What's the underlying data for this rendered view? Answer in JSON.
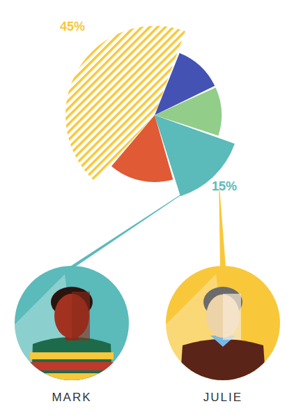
{
  "chart_data": {
    "type": "pie",
    "categories": [
      null,
      null,
      "MARK",
      null,
      "JULIE"
    ],
    "values": [
      12,
      12,
      15,
      16,
      45
    ],
    "value_labels": [
      null,
      null,
      "15%",
      null,
      "45%"
    ],
    "colors": [
      "#4452b4",
      "#92cd8a",
      "#5bbaba",
      "#e05a35",
      "#f8c83a"
    ],
    "data_labels": true
  }
}
